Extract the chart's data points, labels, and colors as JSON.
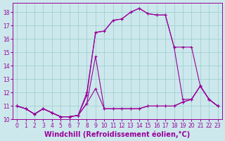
{
  "xlabel": "Windchill (Refroidissement éolien,°C)",
  "line_color": "#990099",
  "bg_color": "#cce8ec",
  "xlim": [
    -0.5,
    23.5
  ],
  "ylim": [
    10.0,
    18.7
  ],
  "xticks": [
    0,
    1,
    2,
    3,
    4,
    5,
    6,
    7,
    8,
    9,
    10,
    11,
    12,
    13,
    14,
    15,
    16,
    17,
    18,
    19,
    20,
    21,
    22,
    23
  ],
  "yticks": [
    10,
    11,
    12,
    13,
    14,
    15,
    16,
    17,
    18
  ],
  "series": [
    [
      11.0,
      10.8,
      10.4,
      10.8,
      10.5,
      10.2,
      10.2,
      10.3,
      11.2,
      12.3,
      10.8,
      10.8,
      10.8,
      10.8,
      10.8,
      11.0,
      11.0,
      11.0,
      11.0,
      11.3,
      11.5,
      12.5,
      11.5,
      11.0
    ],
    [
      11.0,
      10.8,
      10.4,
      10.8,
      10.5,
      10.2,
      10.2,
      10.3,
      11.2,
      14.7,
      10.8,
      10.8,
      10.8,
      10.8,
      10.8,
      11.0,
      11.0,
      11.0,
      11.0,
      11.3,
      11.5,
      12.5,
      11.5,
      11.0
    ],
    [
      11.0,
      10.8,
      10.4,
      10.8,
      10.5,
      10.2,
      10.2,
      10.3,
      12.0,
      16.5,
      16.6,
      17.4,
      17.5,
      18.0,
      18.3,
      17.9,
      17.8,
      17.8,
      15.4,
      15.4,
      15.4,
      12.5,
      11.5,
      11.0
    ],
    [
      11.0,
      10.8,
      10.4,
      10.8,
      10.5,
      10.2,
      10.2,
      10.3,
      11.8,
      16.5,
      16.6,
      17.4,
      17.5,
      18.0,
      18.3,
      17.9,
      17.8,
      17.8,
      15.4,
      11.5,
      11.5,
      12.5,
      11.5,
      11.0
    ]
  ],
  "marker": "+",
  "markersize": 3,
  "linewidth": 0.8,
  "xlabel_fontsize": 7,
  "tick_fontsize": 5.5,
  "grid_color": "#99cccc",
  "grid_linewidth": 0.5
}
